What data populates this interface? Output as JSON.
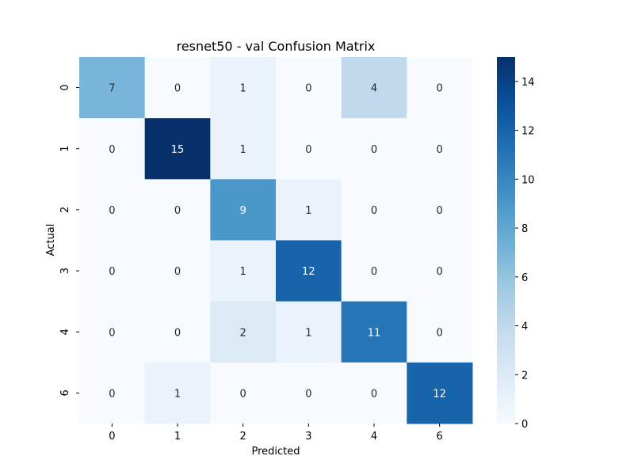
{
  "chart_data": {
    "type": "heatmap",
    "title": "resnet50 - val Confusion Matrix",
    "xlabel": "Predicted",
    "ylabel": "Actual",
    "x_categories": [
      "0",
      "1",
      "2",
      "3",
      "4",
      "6"
    ],
    "y_categories": [
      "0",
      "1",
      "2",
      "3",
      "4",
      "6"
    ],
    "values": [
      [
        7,
        0,
        1,
        0,
        4,
        0
      ],
      [
        0,
        15,
        1,
        0,
        0,
        0
      ],
      [
        0,
        0,
        9,
        1,
        0,
        0
      ],
      [
        0,
        0,
        1,
        12,
        0,
        0
      ],
      [
        0,
        0,
        2,
        1,
        11,
        0
      ],
      [
        0,
        1,
        0,
        0,
        0,
        12
      ]
    ],
    "colorbar": {
      "range": [
        0,
        15
      ],
      "ticks": [
        0,
        2,
        4,
        6,
        8,
        10,
        12,
        14
      ]
    },
    "colormap": "Blues",
    "colormap_low": "#f7fbff",
    "colormap_high": "#08306b"
  }
}
